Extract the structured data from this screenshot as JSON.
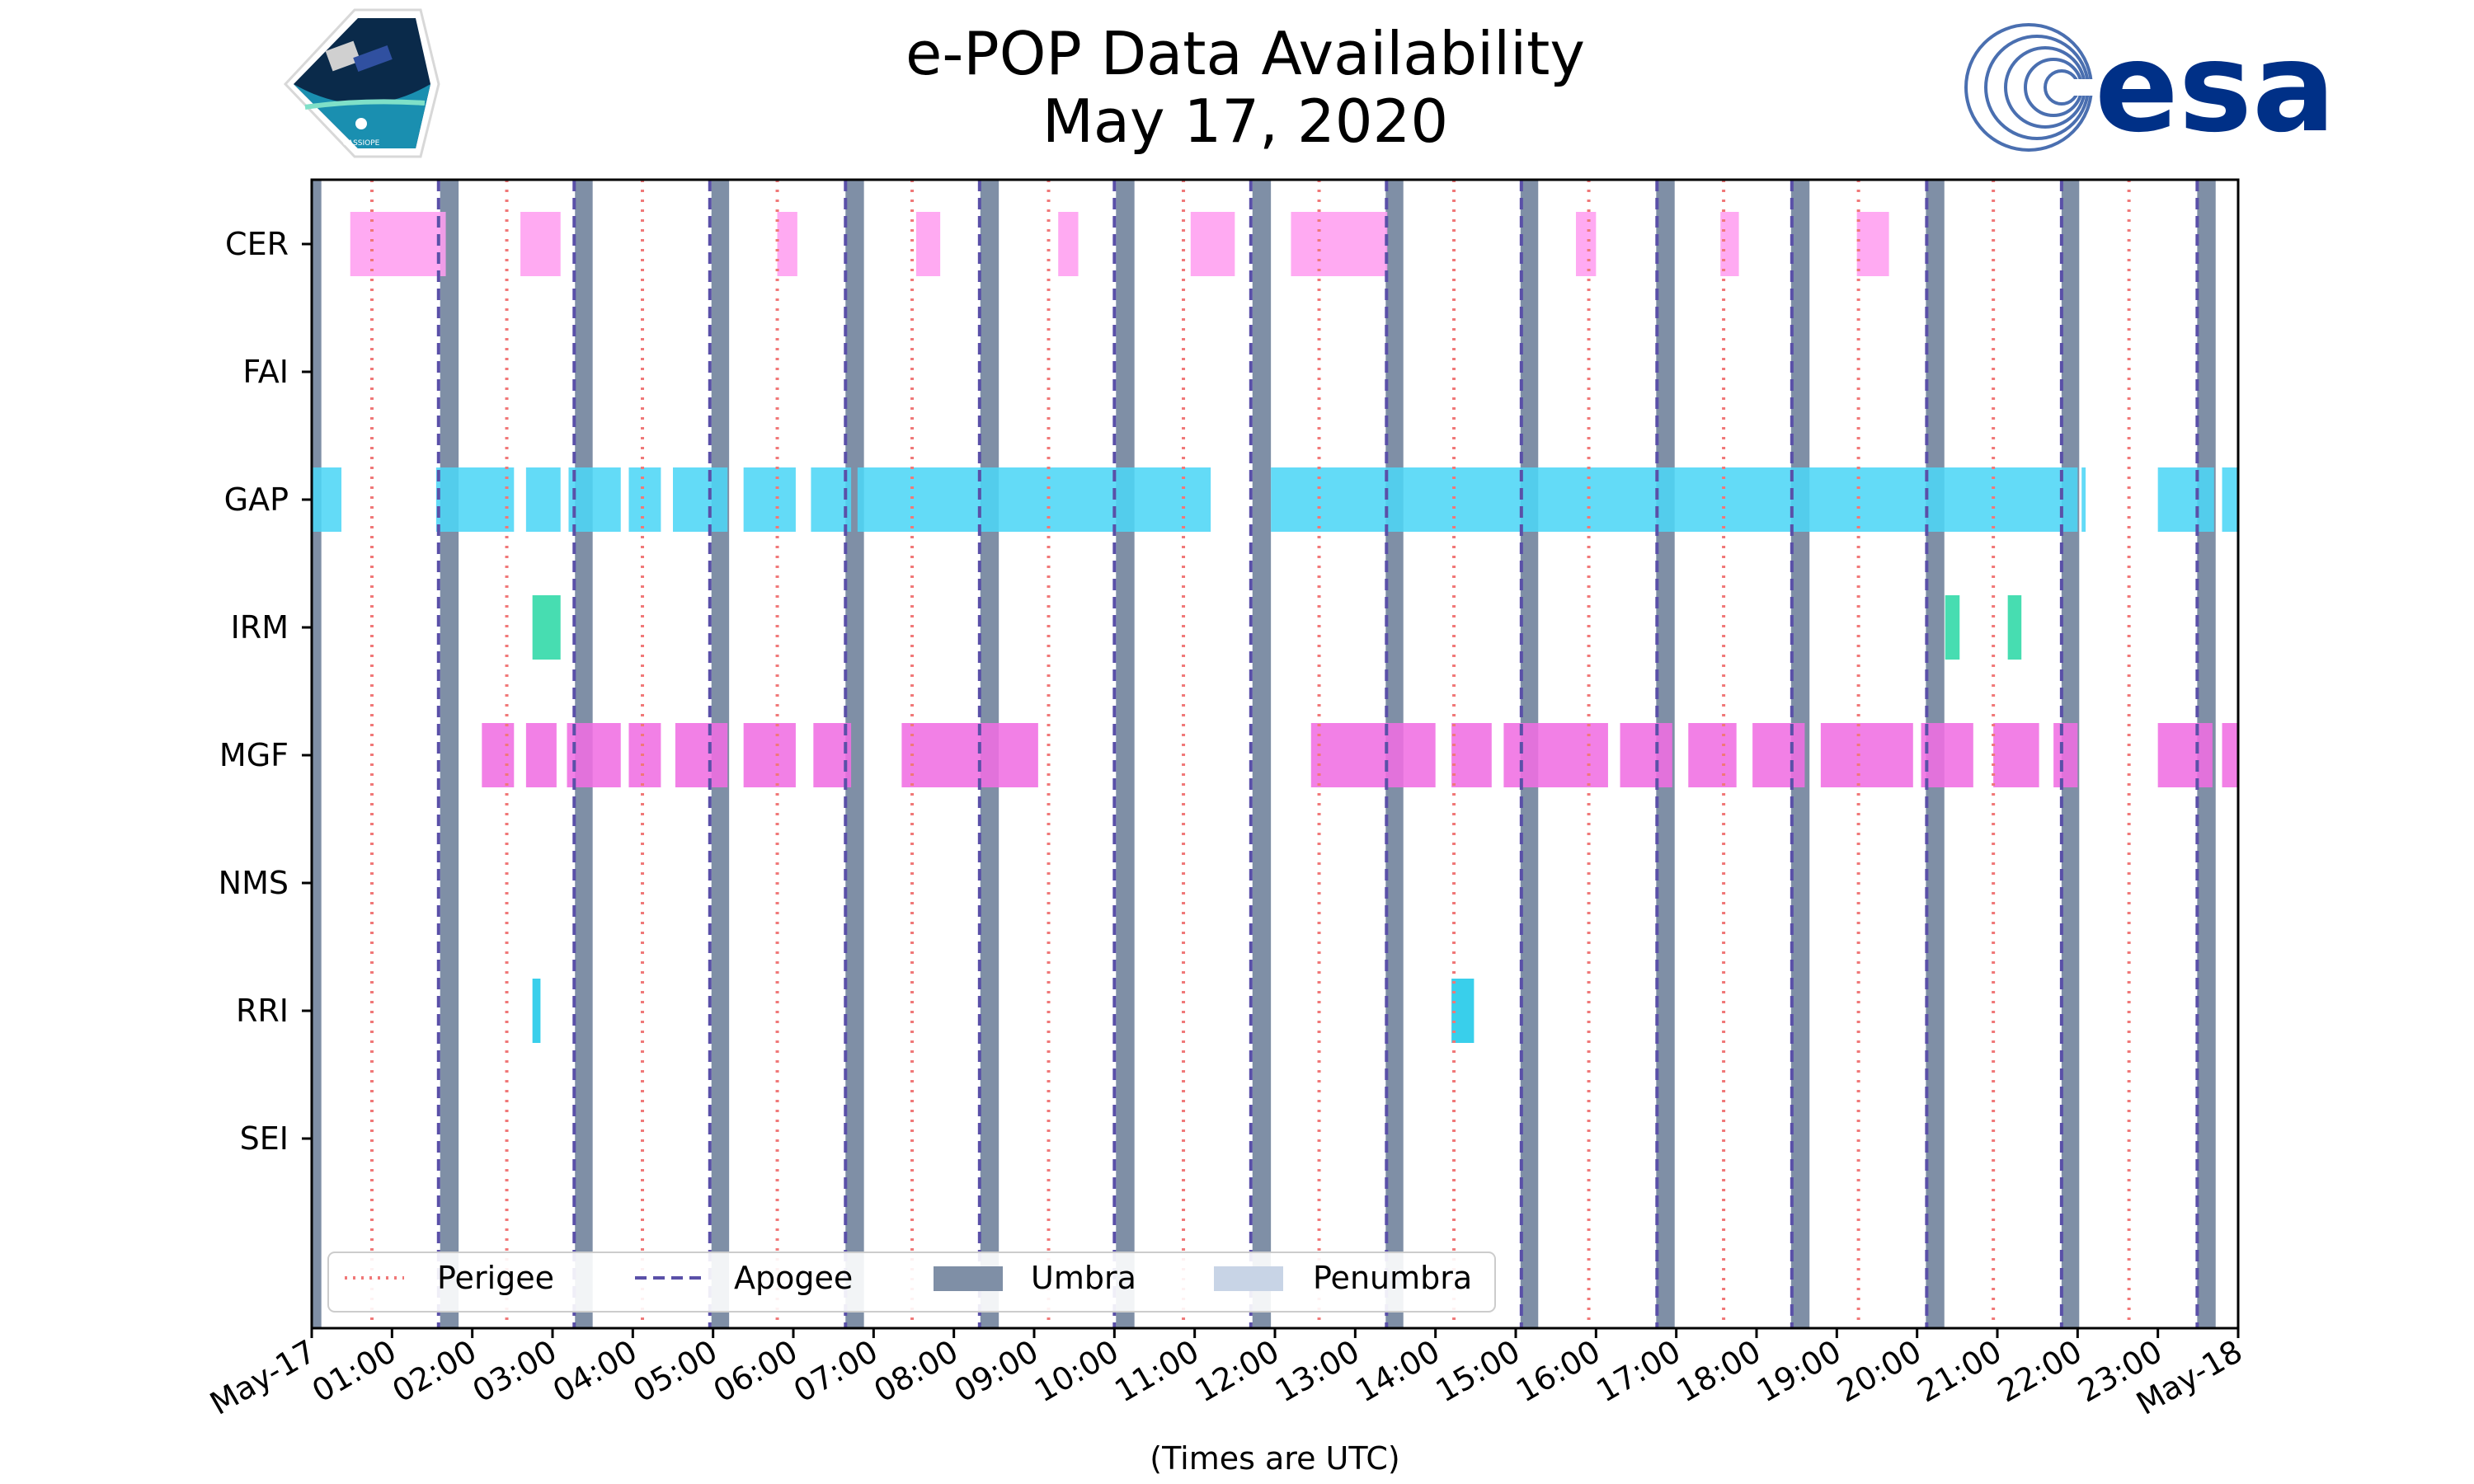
{
  "chart_data": {
    "type": "timeline",
    "title": [
      "e-POP Data Availability",
      "May 17, 2020"
    ],
    "xlabel": "(Times are UTC)",
    "xlim_hours": [
      0,
      24
    ],
    "xtick_labels": [
      "May-17",
      "01:00",
      "02:00",
      "03:00",
      "04:00",
      "05:00",
      "06:00",
      "07:00",
      "08:00",
      "09:00",
      "10:00",
      "11:00",
      "12:00",
      "13:00",
      "14:00",
      "15:00",
      "16:00",
      "17:00",
      "18:00",
      "19:00",
      "20:00",
      "21:00",
      "22:00",
      "23:00",
      "May-18"
    ],
    "instruments": [
      "CER",
      "FAI",
      "GAP",
      "IRM",
      "MGF",
      "NMS",
      "RRI",
      "SEI"
    ],
    "instrument_colors": {
      "CER": "#ff9ef0",
      "FAI": "#cccccc",
      "GAP": "#4dd6f6",
      "IRM": "#2ed8a6",
      "MGF": "#f06ee3",
      "NMS": "#cccccc",
      "RRI": "#1ec8e8",
      "SEI": "#cccccc"
    },
    "availability": {
      "CER": [
        [
          0.48,
          1.67
        ],
        [
          2.6,
          3.1
        ],
        [
          5.8,
          6.05
        ],
        [
          7.53,
          7.83
        ],
        [
          9.3,
          9.55
        ],
        [
          10.95,
          11.5
        ],
        [
          12.2,
          13.4
        ],
        [
          15.75,
          16.0
        ],
        [
          17.55,
          17.78
        ],
        [
          19.25,
          19.65
        ]
      ],
      "FAI": [],
      "GAP": [
        [
          0.0,
          0.37
        ],
        [
          1.55,
          2.52
        ],
        [
          2.67,
          3.1
        ],
        [
          3.2,
          3.85
        ],
        [
          3.95,
          4.35
        ],
        [
          4.5,
          5.18
        ],
        [
          5.38,
          6.03
        ],
        [
          6.22,
          6.72
        ],
        [
          6.8,
          11.2
        ],
        [
          11.95,
          22.0
        ],
        [
          22.05,
          22.1
        ],
        [
          23.0,
          23.7
        ],
        [
          23.8,
          24.0
        ]
      ],
      "IRM": [
        [
          2.75,
          3.1
        ],
        [
          20.35,
          20.53
        ],
        [
          21.13,
          21.3
        ]
      ],
      "MGF": [
        [
          2.12,
          2.52
        ],
        [
          2.67,
          3.05
        ],
        [
          3.18,
          3.85
        ],
        [
          3.95,
          4.35
        ],
        [
          4.53,
          5.18
        ],
        [
          5.38,
          6.03
        ],
        [
          6.25,
          6.72
        ],
        [
          7.35,
          9.05
        ],
        [
          12.45,
          14.0
        ],
        [
          14.2,
          14.7
        ],
        [
          14.85,
          16.15
        ],
        [
          16.3,
          16.95
        ],
        [
          17.15,
          17.75
        ],
        [
          17.95,
          18.6
        ],
        [
          18.8,
          19.95
        ],
        [
          20.05,
          20.7
        ],
        [
          20.95,
          21.52
        ],
        [
          21.7,
          22.0
        ],
        [
          23.0,
          23.68
        ],
        [
          23.8,
          24.0
        ]
      ],
      "NMS": [],
      "RRI": [
        [
          2.75,
          2.85
        ],
        [
          14.2,
          14.48
        ]
      ],
      "SEI": []
    },
    "perigee_hours": [
      0.75,
      2.43,
      4.12,
      5.8,
      7.48,
      9.18,
      10.86,
      12.55,
      14.23,
      15.91,
      17.59,
      19.27,
      20.95,
      22.64
    ],
    "apogee_hours": [
      1.58,
      3.27,
      4.96,
      6.65,
      8.32,
      10.0,
      11.7,
      13.39,
      15.07,
      16.76,
      18.44,
      20.12,
      21.8,
      23.49
    ],
    "umbra_intervals": [
      [
        0.0,
        0.12
      ],
      [
        1.6,
        1.83
      ],
      [
        3.28,
        3.5
      ],
      [
        4.98,
        5.2
      ],
      [
        6.65,
        6.88
      ],
      [
        8.33,
        8.56
      ],
      [
        10.02,
        10.25
      ],
      [
        11.72,
        11.95
      ],
      [
        13.38,
        13.6
      ],
      [
        15.06,
        15.28
      ],
      [
        16.75,
        16.98
      ],
      [
        18.43,
        18.66
      ],
      [
        20.11,
        20.34
      ],
      [
        21.8,
        22.02
      ],
      [
        23.49,
        23.72
      ]
    ],
    "umbra_color": "#7f8fa6",
    "penumbra_color": "#c8d4e6",
    "perigee_color": "#f07878",
    "apogee_color": "#5a50a8",
    "legend": [
      "Perigee",
      "Apogee",
      "Umbra",
      "Penumbra"
    ],
    "legend_position": "lower-left"
  },
  "logos": {
    "left_caption": "CASSIOPE",
    "right_text": "esa"
  }
}
